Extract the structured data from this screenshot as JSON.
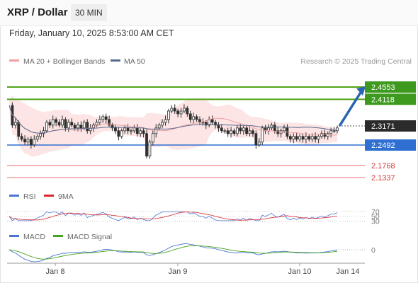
{
  "header": {
    "title": "XRP / Dollar",
    "interval": "30 MIN"
  },
  "timestamp": "Friday, January 10, 2025 8:53:00 AM CET",
  "legend": {
    "ma20": "MA 20 + Bollinger Bands",
    "ma50": "MA 50",
    "credit": "Research © 2025 Trading Central"
  },
  "colors": {
    "bullish_box": "#3d9a1f",
    "target_line": "#4fa317",
    "support_line": "#2f6fd1",
    "red_level": "#e57373",
    "last_price_box": "#2b2b2b",
    "arrow": "#2a63b0",
    "candle": "#2f2f2f",
    "bollinger_fill": "#fde0e0",
    "ma20": "#f3a0a0",
    "ma50": "#556b8d",
    "rsi": "#4a74d4",
    "rsi_ma": "#d9262b",
    "macd": "#4a74d4",
    "macd_signal": "#46a31b"
  },
  "chart_data": [
    {
      "type": "candlestick",
      "title": "XRP / Dollar",
      "x_ticks": [
        "Jan 8",
        "Jan 9",
        "Jan 10",
        "Jan 14"
      ],
      "ylim": [
        2.09,
        2.55
      ],
      "current_price": 2.3171,
      "levels": [
        {
          "label": "2.4553",
          "value": 2.4553,
          "style": "green-box"
        },
        {
          "label": "2.4118",
          "value": 2.4118,
          "style": "green-box"
        },
        {
          "label": "2.3171",
          "value": 2.3171,
          "style": "last-price"
        },
        {
          "label": "2.2492",
          "value": 2.2492,
          "style": "blue-box"
        },
        {
          "label": "2.1768",
          "value": 2.1768,
          "style": "red-text"
        },
        {
          "label": "2.1337",
          "value": 2.1337,
          "style": "red-text"
        }
      ],
      "forecast_arrow": {
        "from": 2.32,
        "to": 2.455
      },
      "close_path": [
        2.39,
        2.32,
        2.33,
        2.28,
        2.27,
        2.26,
        2.27,
        2.25,
        2.27,
        2.28,
        2.29,
        2.3,
        2.33,
        2.32,
        2.34,
        2.33,
        2.32,
        2.34,
        2.31,
        2.33,
        2.32,
        2.31,
        2.32,
        2.31,
        2.33,
        2.3,
        2.31,
        2.32,
        2.33,
        2.34,
        2.35,
        2.34,
        2.32,
        2.31,
        2.3,
        2.28,
        2.3,
        2.31,
        2.3,
        2.3,
        2.31,
        2.29,
        2.3,
        2.29,
        2.21,
        2.26,
        2.29,
        2.31,
        2.32,
        2.33,
        2.34,
        2.37,
        2.38,
        2.37,
        2.36,
        2.37,
        2.38,
        2.36,
        2.34,
        2.35,
        2.34,
        2.33,
        2.33,
        2.32,
        2.34,
        2.33,
        2.32,
        2.31,
        2.3,
        2.3,
        2.29,
        2.3,
        2.29,
        2.31,
        2.3,
        2.31,
        2.29,
        2.3,
        2.29,
        2.25,
        2.26,
        2.31,
        2.3,
        2.31,
        2.32,
        2.3,
        2.29,
        2.3,
        2.31,
        2.28,
        2.27,
        2.28,
        2.27,
        2.28,
        2.27,
        2.28,
        2.27,
        2.28,
        2.27,
        2.28,
        2.29,
        2.28,
        2.29,
        2.3,
        2.3,
        2.31
      ]
    },
    {
      "type": "line",
      "title": "RSI",
      "series": [
        {
          "name": "RSI"
        },
        {
          "name": "9MA"
        }
      ],
      "levels": [
        70,
        50,
        30
      ]
    },
    {
      "type": "line",
      "title": "MACD",
      "series": [
        {
          "name": "MACD"
        },
        {
          "name": "MACD Signal"
        }
      ],
      "levels": [
        0
      ]
    }
  ]
}
